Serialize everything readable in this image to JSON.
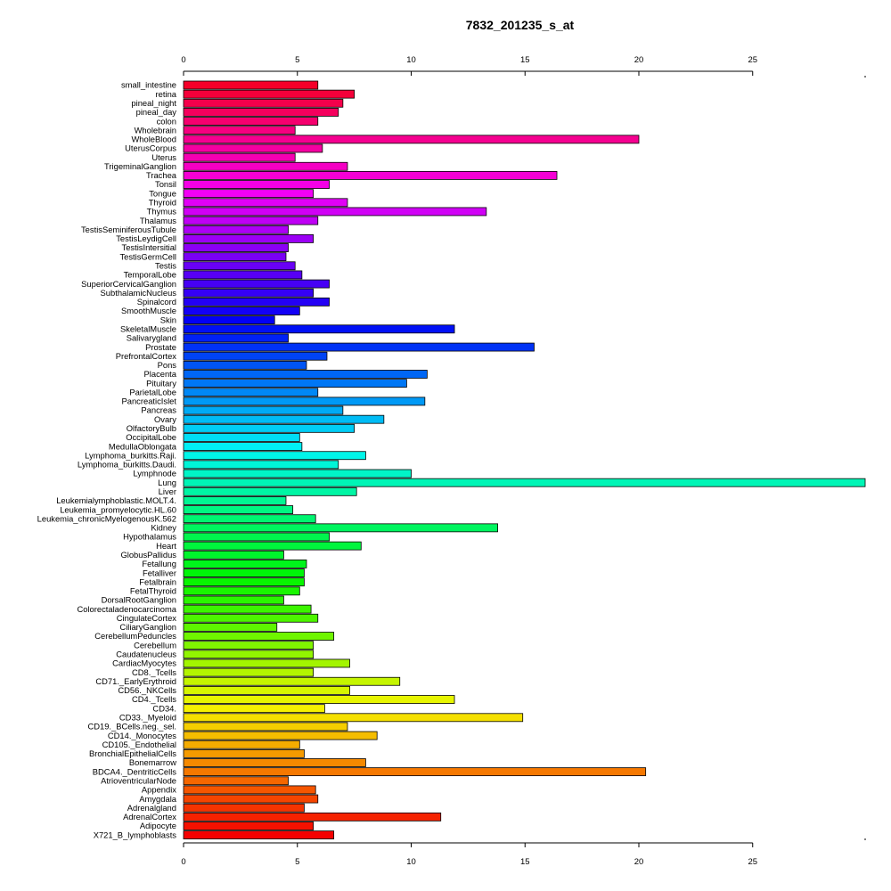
{
  "chart_data": {
    "type": "bar",
    "orientation": "horizontal",
    "title": "7832_201235_s_at",
    "xlabel": "",
    "ylabel": "",
    "xlim": [
      0,
      30
    ],
    "x_ticks": [
      0,
      5,
      10,
      15,
      20,
      25
    ],
    "axis_position": "top and bottom",
    "grid": false,
    "legend": "none",
    "categories": [
      "small_intestine",
      "retina",
      "pineal_night",
      "pineal_day",
      "colon",
      "Wholebrain",
      "WholeBlood",
      "UterusCorpus",
      "Uterus",
      "TrigeminalGanglion",
      "Trachea",
      "Tonsil",
      "Tongue",
      "Thyroid",
      "Thymus",
      "Thalamus",
      "TestisSeminiferousTubule",
      "TestisLeydigCell",
      "TestisIntersitial",
      "TestisGermCell",
      "Testis",
      "TemporalLobe",
      "SuperiorCervicalGanglion",
      "SubthalamicNucleus",
      "Spinalcord",
      "SmoothMuscle",
      "Skin",
      "SkeletalMuscle",
      "Salivarygland",
      "Prostate",
      "PrefrontalCortex",
      "Pons",
      "Placenta",
      "Pituitary",
      "ParietalLobe",
      "PancreaticIslet",
      "Pancreas",
      "Ovary",
      "OlfactoryBulb",
      "OccipitalLobe",
      "MedullaOblongata",
      "Lymphoma_burkitts.Raji.",
      "Lymphoma_burkitts.Daudi.",
      "Lymphnode",
      "Lung",
      "Liver",
      "Leukemialymphoblastic.MOLT.4.",
      "Leukemia_promyelocytic.HL.60",
      "Leukemia_chronicMyelogenousK.562",
      "Kidney",
      "Hypothalamus",
      "Heart",
      "GlobusPallidus",
      "Fetallung",
      "Fetalliver",
      "Fetalbrain",
      "FetalThyroid",
      "DorsalRootGanglion",
      "Colorectaladenocarcinoma",
      "CingulateCortex",
      "CiliaryGanglion",
      "CerebellumPeduncles",
      "Cerebellum",
      "Caudatenucleus",
      "CardiacMyocytes",
      "CD8._Tcells",
      "CD71._EarlyErythroid",
      "CD56._NKCells",
      "CD4._Tcells",
      "CD34.",
      "CD33._Myeloid",
      "CD19._BCells.neg._sel.",
      "CD14._Monocytes",
      "CD105._Endothelial",
      "BronchialEpithelialCells",
      "Bonemarrow",
      "BDCA4._DentriticCells",
      "AtrioventricularNode",
      "Appendix",
      "Amygdala",
      "Adrenalgland",
      "AdrenalCortex",
      "Adipocyte",
      "X721_B_lymphoblasts"
    ],
    "values": [
      5.9,
      7.5,
      7.0,
      6.8,
      5.9,
      4.9,
      20.0,
      6.1,
      4.9,
      7.2,
      16.4,
      6.4,
      5.7,
      7.2,
      13.3,
      5.9,
      4.6,
      5.7,
      4.6,
      4.5,
      4.9,
      5.2,
      6.4,
      5.7,
      6.4,
      5.1,
      4.0,
      11.9,
      4.6,
      15.4,
      6.3,
      5.4,
      10.7,
      9.8,
      5.9,
      10.6,
      7.0,
      8.8,
      7.5,
      5.1,
      5.2,
      8.0,
      6.8,
      10.0,
      30.0,
      7.6,
      4.5,
      4.8,
      5.8,
      13.8,
      6.4,
      7.8,
      4.4,
      5.4,
      5.3,
      5.3,
      5.1,
      4.4,
      5.6,
      5.9,
      4.1,
      6.6,
      5.7,
      5.7,
      7.3,
      5.7,
      9.5,
      7.3,
      11.9,
      6.2,
      14.9,
      7.2,
      8.5,
      5.1,
      5.3,
      8.0,
      20.3,
      4.6,
      5.8,
      5.9,
      5.3,
      11.3,
      5.7,
      6.6
    ]
  }
}
